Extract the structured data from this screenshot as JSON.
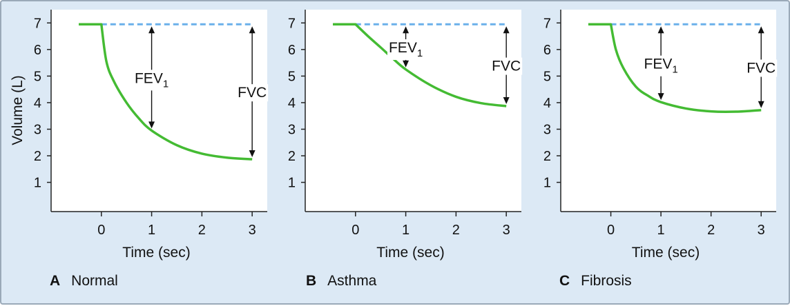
{
  "colors": {
    "background": "#dce9f5",
    "plot_bg": "#ffffff",
    "curve": "#44bb33",
    "dashed_line": "#6ab0ea",
    "axis": "#222222"
  },
  "axes": {
    "ylabel": "Volume (L)",
    "xlabel": "Time (sec)"
  },
  "panels": [
    {
      "letter": "A",
      "title": "Normal"
    },
    {
      "letter": "B",
      "title": "Asthma"
    },
    {
      "letter": "C",
      "title": "Fibrosis"
    }
  ],
  "chart_data": [
    {
      "type": "line",
      "title": "Normal",
      "xlabel": "Time (sec)",
      "ylabel": "Volume (L)",
      "xlim": [
        -1,
        3.3
      ],
      "ylim": [
        -0.1,
        7.5
      ],
      "xticks": [
        0,
        1,
        2,
        3
      ],
      "yticks": [
        1,
        2,
        3,
        4,
        5,
        6,
        7
      ],
      "series": [
        {
          "x": [
            -0.45,
            0,
            0.1,
            0.25,
            0.5,
            0.75,
            1,
            1.5,
            2,
            2.5,
            3
          ],
          "y": [
            6.95,
            6.95,
            5.55,
            4.8,
            4.0,
            3.4,
            2.95,
            2.4,
            2.08,
            1.93,
            1.87
          ]
        }
      ],
      "reference_line": {
        "y": 6.95,
        "x": [
          0,
          3
        ],
        "style": "dashed"
      },
      "annotations": [
        {
          "label": "FEV",
          "subscript": "1",
          "x": 1,
          "y_top": 6.95,
          "y_bottom": 2.95
        },
        {
          "label": "FVC",
          "x": 3,
          "y_top": 6.95,
          "y_bottom": 1.87
        }
      ]
    },
    {
      "type": "line",
      "title": "Asthma",
      "xlabel": "Time (sec)",
      "ylabel": "Volume (L)",
      "xlim": [
        -1,
        3.3
      ],
      "ylim": [
        -0.1,
        7.5
      ],
      "xticks": [
        0,
        1,
        2,
        3
      ],
      "yticks": [
        1,
        2,
        3,
        4,
        5,
        6,
        7
      ],
      "series": [
        {
          "x": [
            -0.45,
            0,
            0.25,
            0.5,
            0.75,
            1,
            1.5,
            2,
            2.5,
            3
          ],
          "y": [
            6.95,
            6.95,
            6.5,
            6.08,
            5.65,
            5.25,
            4.65,
            4.22,
            3.98,
            3.87
          ]
        }
      ],
      "reference_line": {
        "y": 6.95,
        "x": [
          0,
          3
        ],
        "style": "dashed"
      },
      "annotations": [
        {
          "label": "FEV",
          "subscript": "1",
          "x": 1,
          "y_top": 6.95,
          "y_bottom": 5.25
        },
        {
          "label": "FVC",
          "x": 3,
          "y_top": 6.95,
          "y_bottom": 3.87
        }
      ]
    },
    {
      "type": "line",
      "title": "Fibrosis",
      "xlabel": "Time (sec)",
      "ylabel": "Volume (L)",
      "xlim": [
        -1,
        3.3
      ],
      "ylim": [
        -0.1,
        7.5
      ],
      "xticks": [
        0,
        1,
        2,
        3
      ],
      "yticks": [
        1,
        2,
        3,
        4,
        5,
        6,
        7
      ],
      "series": [
        {
          "x": [
            -0.45,
            0,
            0.1,
            0.25,
            0.5,
            0.75,
            1,
            1.5,
            2,
            2.5,
            3
          ],
          "y": [
            6.95,
            6.95,
            6.0,
            5.3,
            4.6,
            4.25,
            4.02,
            3.78,
            3.67,
            3.66,
            3.72
          ]
        }
      ],
      "reference_line": {
        "y": 6.95,
        "x": [
          0,
          3
        ],
        "style": "dashed"
      },
      "annotations": [
        {
          "label": "FEV",
          "subscript": "1",
          "x": 1,
          "y_top": 6.95,
          "y_bottom": 4.02
        },
        {
          "label": "FVC",
          "x": 3,
          "y_top": 6.95,
          "y_bottom": 3.72
        }
      ]
    }
  ]
}
